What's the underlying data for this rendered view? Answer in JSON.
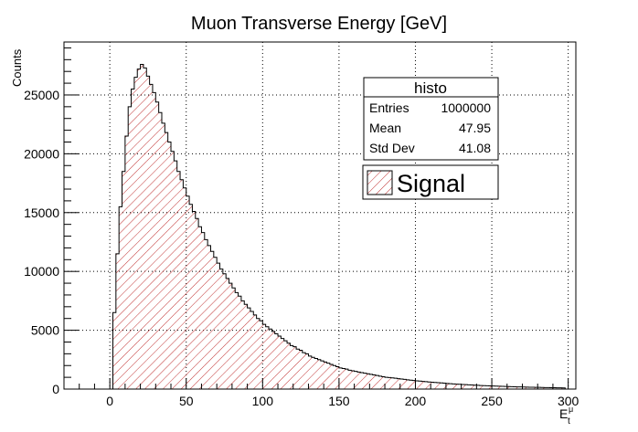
{
  "chart_data": {
    "type": "bar",
    "title": "Muon Transverse Energy [GeV]",
    "xlabel": "E",
    "xlabel_sub": "t",
    "xlabel_sup": "μ",
    "ylabel": "Counts",
    "xlim": [
      -30,
      305
    ],
    "ylim": [
      0,
      29500
    ],
    "xticks": [
      0,
      50,
      100,
      150,
      200,
      250,
      300
    ],
    "yticks": [
      0,
      5000,
      10000,
      15000,
      20000,
      25000
    ],
    "grid": true,
    "bin_width": 2,
    "bin_start": 0,
    "values": [
      0,
      6500,
      11500,
      15500,
      18500,
      21500,
      24000,
      25500,
      26500,
      27200,
      27600,
      27300,
      26600,
      25900,
      25200,
      24400,
      23500,
      22600,
      21800,
      21000,
      20200,
      19400,
      18500,
      17800,
      17100,
      16400,
      15700,
      15100,
      14500,
      13800,
      13300,
      12700,
      12200,
      11700,
      11200,
      10700,
      10200,
      9800,
      9400,
      9000,
      8600,
      8200,
      7900,
      7500,
      7200,
      6900,
      6600,
      6300,
      6000,
      5800,
      5500,
      5300,
      5100,
      4900,
      4700,
      4500,
      4300,
      4100,
      3900,
      3700,
      3600,
      3400,
      3300,
      3100,
      3000,
      2800,
      2700,
      2600,
      2500,
      2400,
      2300,
      2200,
      2100,
      2000,
      1900,
      1800,
      1750,
      1700,
      1600,
      1550,
      1500,
      1450,
      1400,
      1350,
      1300,
      1250,
      1200,
      1150,
      1100,
      1050,
      1000,
      980,
      950,
      920,
      880,
      850,
      820,
      790,
      760,
      730,
      700,
      680,
      650,
      630,
      600,
      580,
      560,
      540,
      520,
      500,
      480,
      460,
      440,
      420,
      405,
      390,
      375,
      360,
      345,
      330,
      318,
      305,
      293,
      281,
      270,
      259,
      249,
      239,
      230,
      221,
      212,
      204,
      196,
      188,
      180,
      173,
      166,
      160,
      153,
      147,
      141,
      136,
      130,
      125,
      120,
      115,
      110,
      105,
      101
    ],
    "legend": {
      "position": "top-right",
      "entries": [
        "Signal"
      ]
    },
    "colors": {
      "fill_hatch": "#c03030",
      "outline": "#000000",
      "grid": "#000000"
    }
  },
  "stats_box": {
    "title": "histo",
    "rows": [
      {
        "label": "Entries",
        "value": "1000000"
      },
      {
        "label": "Mean",
        "value": "47.95"
      },
      {
        "label": "Std Dev",
        "value": "41.08"
      }
    ]
  }
}
